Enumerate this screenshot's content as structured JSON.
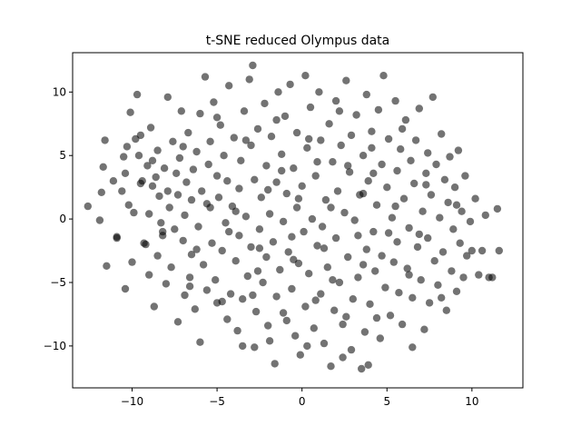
{
  "chart_data": {
    "type": "scatter",
    "title": "t-SNE reduced Olympus data",
    "xlabel": "",
    "ylabel": "",
    "xlim": [
      -13.5,
      13.0
    ],
    "ylim": [
      -13.3,
      13.1
    ],
    "xticks": [
      -10,
      -5,
      0,
      5,
      10
    ],
    "yticks": [
      -10,
      -5,
      0,
      5,
      10
    ],
    "grid": false,
    "legend": "none",
    "point_color": "#000000",
    "point_alpha": 0.55,
    "series": [
      {
        "name": "",
        "points": [
          [
            -12.6,
            1.0
          ],
          [
            -11.9,
            -0.1
          ],
          [
            -11.8,
            2.1
          ],
          [
            -11.7,
            4.1
          ],
          [
            -11.6,
            6.2
          ],
          [
            -11.5,
            -3.7
          ],
          [
            -11.1,
            3.0
          ],
          [
            -10.9,
            -1.5
          ],
          [
            -10.9,
            -1.4
          ],
          [
            -10.6,
            2.2
          ],
          [
            -10.5,
            4.9
          ],
          [
            -10.4,
            -5.5
          ],
          [
            -10.4,
            3.6
          ],
          [
            -10.3,
            5.7
          ],
          [
            -10.2,
            1.1
          ],
          [
            -10.1,
            8.4
          ],
          [
            -10.0,
            -3.4
          ],
          [
            -9.9,
            0.5
          ],
          [
            -9.8,
            6.3
          ],
          [
            -9.7,
            9.8
          ],
          [
            -9.6,
            5.0
          ],
          [
            -9.5,
            2.8
          ],
          [
            -9.4,
            3.0
          ],
          [
            -9.3,
            -1.9
          ],
          [
            -9.2,
            -2.0
          ],
          [
            -9.1,
            4.2
          ],
          [
            -9.0,
            -4.4
          ],
          [
            -9.0,
            0.4
          ],
          [
            -8.9,
            7.2
          ],
          [
            -8.8,
            2.6
          ],
          [
            -8.7,
            -6.9
          ],
          [
            -8.6,
            3.3
          ],
          [
            -8.5,
            -2.9
          ],
          [
            -8.5,
            5.4
          ],
          [
            -8.4,
            1.8
          ],
          [
            -8.3,
            -0.3
          ],
          [
            -8.2,
            -1.3
          ],
          [
            -8.1,
            4.0
          ],
          [
            -8.0,
            -5.1
          ],
          [
            -7.9,
            9.6
          ],
          [
            -7.9,
            2.2
          ],
          [
            -7.8,
            0.9
          ],
          [
            -7.7,
            -3.8
          ],
          [
            -7.6,
            6.1
          ],
          [
            -7.5,
            -0.8
          ],
          [
            -7.4,
            3.6
          ],
          [
            -7.3,
            -8.1
          ],
          [
            -7.2,
            4.8
          ],
          [
            -7.1,
            8.5
          ],
          [
            -7.0,
            -1.7
          ],
          [
            -6.9,
            0.3
          ],
          [
            -6.9,
            -6.0
          ],
          [
            -6.8,
            2.9
          ],
          [
            -6.7,
            6.8
          ],
          [
            -6.6,
            -4.6
          ],
          [
            -6.5,
            1.5
          ],
          [
            -6.5,
            -2.8
          ],
          [
            -6.4,
            3.9
          ],
          [
            -6.3,
            -7.1
          ],
          [
            -6.2,
            5.3
          ],
          [
            -6.1,
            -0.6
          ],
          [
            -6.0,
            8.3
          ],
          [
            -6.0,
            -9.7
          ],
          [
            -5.9,
            2.2
          ],
          [
            -5.8,
            -3.6
          ],
          [
            -5.7,
            11.2
          ],
          [
            -5.6,
            -5.6
          ],
          [
            -5.5,
            4.3
          ],
          [
            -5.4,
            6.1
          ],
          [
            -5.4,
            0.9
          ],
          [
            -5.3,
            -1.9
          ],
          [
            -5.2,
            9.2
          ],
          [
            -5.1,
            -4.8
          ],
          [
            -5.0,
            3.4
          ],
          [
            -5.0,
            -6.6
          ],
          [
            -4.9,
            1.7
          ],
          [
            -4.8,
            7.4
          ],
          [
            -4.7,
            -2.5
          ],
          [
            -4.6,
            5.0
          ],
          [
            -4.5,
            -0.3
          ],
          [
            -4.4,
            -7.9
          ],
          [
            -4.4,
            3.0
          ],
          [
            -4.3,
            10.5
          ],
          [
            -4.2,
            -5.9
          ],
          [
            -4.1,
            1.0
          ],
          [
            -4.0,
            6.4
          ],
          [
            -3.9,
            -3.3
          ],
          [
            -3.8,
            -8.8
          ],
          [
            -3.7,
            2.4
          ],
          [
            -3.7,
            -1.3
          ],
          [
            -3.6,
            4.6
          ],
          [
            -3.5,
            -6.3
          ],
          [
            -3.4,
            8.5
          ],
          [
            -3.3,
            0.2
          ],
          [
            -3.2,
            -4.5
          ],
          [
            -3.1,
            11.0
          ],
          [
            -3.0,
            -2.2
          ],
          [
            -3.0,
            5.8
          ],
          [
            -2.9,
            12.1
          ],
          [
            -2.8,
            -10.1
          ],
          [
            -2.8,
            3.1
          ],
          [
            -2.7,
            -7.3
          ],
          [
            -2.6,
            7.1
          ],
          [
            -2.5,
            -0.8
          ],
          [
            -2.4,
            1.7
          ],
          [
            -2.3,
            -5.0
          ],
          [
            -2.2,
            9.1
          ],
          [
            -2.1,
            -3.0
          ],
          [
            -2.1,
            4.2
          ],
          [
            -2.0,
            -8.4
          ],
          [
            -1.9,
            0.4
          ],
          [
            -1.8,
            6.5
          ],
          [
            -1.7,
            -1.8
          ],
          [
            -1.6,
            -11.4
          ],
          [
            -1.5,
            2.9
          ],
          [
            -1.5,
            -6.1
          ],
          [
            -1.4,
            10.0
          ],
          [
            -1.3,
            -4.0
          ],
          [
            -1.2,
            5.1
          ],
          [
            -1.1,
            -0.2
          ],
          [
            -1.0,
            8.1
          ],
          [
            -0.9,
            -8.0
          ],
          [
            -0.9,
            2.0
          ],
          [
            -0.8,
            -2.6
          ],
          [
            -0.7,
            10.6
          ],
          [
            -0.6,
            -5.5
          ],
          [
            -0.5,
            4.0
          ],
          [
            -0.4,
            -9.2
          ],
          [
            -0.3,
            0.9
          ],
          [
            -0.3,
            6.8
          ],
          [
            -0.2,
            -3.5
          ],
          [
            -0.1,
            -10.7
          ],
          [
            0.0,
            2.6
          ],
          [
            0.1,
            -1.0
          ],
          [
            0.2,
            11.3
          ],
          [
            0.2,
            -6.9
          ],
          [
            0.3,
            5.6
          ],
          [
            0.4,
            -4.3
          ],
          [
            0.5,
            8.8
          ],
          [
            0.6,
            0.0
          ],
          [
            0.7,
            -8.6
          ],
          [
            0.8,
            3.4
          ],
          [
            0.9,
            -2.1
          ],
          [
            1.0,
            10.0
          ],
          [
            1.1,
            -5.9
          ],
          [
            1.1,
            6.2
          ],
          [
            1.2,
            -0.6
          ],
          [
            1.3,
            -9.8
          ],
          [
            1.4,
            1.5
          ],
          [
            1.5,
            -3.8
          ],
          [
            1.6,
            7.5
          ],
          [
            1.7,
            -11.6
          ],
          [
            1.8,
            4.5
          ],
          [
            1.9,
            -7.2
          ],
          [
            2.0,
            -1.5
          ],
          [
            2.0,
            9.3
          ],
          [
            2.1,
            2.2
          ],
          [
            2.2,
            -5.0
          ],
          [
            2.3,
            5.8
          ],
          [
            2.4,
            -8.3
          ],
          [
            2.5,
            0.5
          ],
          [
            2.6,
            10.9
          ],
          [
            2.7,
            -3.0
          ],
          [
            2.8,
            3.7
          ],
          [
            2.9,
            -10.3
          ],
          [
            2.9,
            6.6
          ],
          [
            3.0,
            -6.3
          ],
          [
            3.1,
            -0.1
          ],
          [
            3.2,
            8.2
          ],
          [
            3.3,
            -4.6
          ],
          [
            3.4,
            1.9
          ],
          [
            3.5,
            -11.8
          ],
          [
            3.6,
            5.0
          ],
          [
            3.7,
            -8.9
          ],
          [
            3.8,
            -2.4
          ],
          [
            3.8,
            9.8
          ],
          [
            3.9,
            3.0
          ],
          [
            4.0,
            -6.7
          ],
          [
            4.1,
            6.9
          ],
          [
            4.2,
            -1.0
          ],
          [
            4.3,
            -4.1
          ],
          [
            4.4,
            1.1
          ],
          [
            4.5,
            8.6
          ],
          [
            4.6,
            -9.4
          ],
          [
            4.7,
            4.3
          ],
          [
            4.7,
            -2.9
          ],
          [
            4.8,
            11.3
          ],
          [
            4.9,
            -5.4
          ],
          [
            5.0,
            2.5
          ],
          [
            5.1,
            6.3
          ],
          [
            5.2,
            -7.6
          ],
          [
            5.3,
            0.1
          ],
          [
            5.4,
            -3.4
          ],
          [
            5.5,
            9.3
          ],
          [
            5.6,
            3.8
          ],
          [
            5.6,
            -1.8
          ],
          [
            5.7,
            -5.8
          ],
          [
            5.8,
            5.5
          ],
          [
            5.9,
            -8.3
          ],
          [
            6.0,
            1.6
          ],
          [
            6.1,
            7.8
          ],
          [
            6.2,
            -3.9
          ],
          [
            6.3,
            -0.7
          ],
          [
            6.4,
            4.6
          ],
          [
            6.5,
            -10.1
          ],
          [
            6.5,
            -6.2
          ],
          [
            6.6,
            2.8
          ],
          [
            6.7,
            6.2
          ],
          [
            6.8,
            -2.2
          ],
          [
            6.9,
            8.7
          ],
          [
            7.0,
            -4.8
          ],
          [
            7.1,
            0.6
          ],
          [
            7.2,
            -8.7
          ],
          [
            7.3,
            3.6
          ],
          [
            7.4,
            -1.5
          ],
          [
            7.4,
            5.2
          ],
          [
            7.5,
            -6.6
          ],
          [
            7.6,
            1.9
          ],
          [
            7.7,
            9.6
          ],
          [
            7.8,
            -3.3
          ],
          [
            7.9,
            4.3
          ],
          [
            8.0,
            -5.2
          ],
          [
            8.1,
            0.1
          ],
          [
            8.2,
            6.7
          ],
          [
            8.3,
            -2.6
          ],
          [
            8.4,
            3.1
          ],
          [
            8.5,
            -7.2
          ],
          [
            8.6,
            1.3
          ],
          [
            8.7,
            4.9
          ],
          [
            8.8,
            -4.1
          ],
          [
            8.9,
            -0.8
          ],
          [
            9.0,
            2.5
          ],
          [
            9.1,
            -5.7
          ],
          [
            9.2,
            5.4
          ],
          [
            9.3,
            -1.9
          ],
          [
            9.4,
            0.6
          ],
          [
            9.5,
            -4.6
          ],
          [
            9.6,
            3.4
          ],
          [
            9.7,
            -2.9
          ],
          [
            9.9,
            -0.2
          ],
          [
            10.0,
            -2.5
          ],
          [
            10.2,
            1.6
          ],
          [
            10.4,
            -4.4
          ],
          [
            10.6,
            -2.5
          ],
          [
            10.8,
            0.3
          ],
          [
            11.0,
            -4.6
          ],
          [
            11.2,
            -4.6
          ],
          [
            11.5,
            0.8
          ],
          [
            11.6,
            -2.5
          ],
          [
            -9.5,
            6.6
          ],
          [
            -8.2,
            -1.0
          ],
          [
            -6.2,
            -2.4
          ],
          [
            -4.3,
            -1.0
          ],
          [
            -2.5,
            -2.3
          ],
          [
            -0.6,
            -1.4
          ],
          [
            1.3,
            -2.3
          ],
          [
            3.3,
            -1.3
          ],
          [
            5.1,
            -1.1
          ],
          [
            6.9,
            -1.2
          ],
          [
            -7.3,
            1.9
          ],
          [
            -5.6,
            1.2
          ],
          [
            -3.9,
            0.6
          ],
          [
            -2.0,
            2.3
          ],
          [
            -0.2,
            1.6
          ],
          [
            1.7,
            0.9
          ],
          [
            3.6,
            2.0
          ],
          [
            5.5,
            1.0
          ],
          [
            7.3,
            2.7
          ],
          [
            9.1,
            1.1
          ],
          [
            -6.6,
            -5.3
          ],
          [
            -4.7,
            -6.5
          ],
          [
            -2.9,
            -6.0
          ],
          [
            -1.1,
            -7.4
          ],
          [
            0.8,
            -6.4
          ],
          [
            2.6,
            -7.7
          ],
          [
            4.4,
            -7.8
          ],
          [
            6.3,
            -4.4
          ],
          [
            8.2,
            -6.2
          ],
          [
            -5.0,
            8.0
          ],
          [
            -3.3,
            6.2
          ],
          [
            -1.5,
            7.8
          ],
          [
            0.4,
            6.3
          ],
          [
            2.2,
            8.5
          ],
          [
            4.1,
            5.6
          ],
          [
            5.9,
            7.1
          ],
          [
            -8.8,
            4.6
          ],
          [
            -7.0,
            5.7
          ],
          [
            -1.2,
            3.8
          ],
          [
            0.9,
            4.5
          ],
          [
            2.7,
            4.2
          ],
          [
            4.2,
            3.6
          ],
          [
            -2.6,
            -4.1
          ],
          [
            -0.5,
            -3.2
          ],
          [
            1.8,
            -4.8
          ],
          [
            3.6,
            -3.6
          ],
          [
            -3.5,
            -10.0
          ],
          [
            -1.9,
            -9.6
          ],
          [
            0.3,
            -10.0
          ],
          [
            2.4,
            -10.9
          ],
          [
            3.9,
            -11.5
          ]
        ]
      }
    ]
  }
}
